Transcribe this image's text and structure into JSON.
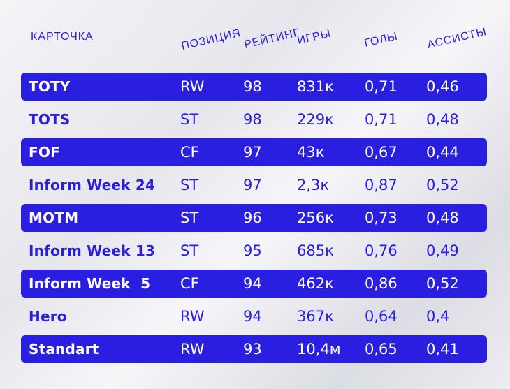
{
  "header": {
    "card": "КАРТОЧКА",
    "position": "ПОЗИЦИЯ",
    "rating": "РЕЙТИНГ",
    "games": "ИГРЫ",
    "goals": "ГОЛЫ",
    "assists": "АССИСТЫ"
  },
  "colors": {
    "accent": "#2a1ee0",
    "row_text_light": "#ffffff"
  },
  "rows": [
    {
      "name": "TOTY",
      "position": "RW",
      "rating": "98",
      "games": "831к",
      "goals": "0,71",
      "assists": "0,46"
    },
    {
      "name": "TOTS",
      "position": "ST",
      "rating": "98",
      "games": "229к",
      "goals": "0,71",
      "assists": "0,48"
    },
    {
      "name": "FOF",
      "position": "CF",
      "rating": "97",
      "games": "43к",
      "goals": "0,67",
      "assists": "0,44"
    },
    {
      "name": "Inform Week 24",
      "position": "ST",
      "rating": "97",
      "games": "2,3к",
      "goals": "0,87",
      "assists": "0,52"
    },
    {
      "name": "MOTM",
      "position": "ST",
      "rating": "96",
      "games": "256к",
      "goals": "0,73",
      "assists": "0,48"
    },
    {
      "name": "Inform Week 13",
      "position": "ST",
      "rating": "95",
      "games": "685к",
      "goals": "0,76",
      "assists": "0,49"
    },
    {
      "name": "Inform Week  5",
      "position": "CF",
      "rating": "94",
      "games": "462к",
      "goals": "0,86",
      "assists": "0,52"
    },
    {
      "name": "Hero",
      "position": "RW",
      "rating": "94",
      "games": "367к",
      "goals": "0,64",
      "assists": "0,4"
    },
    {
      "name": "Standart",
      "position": "RW",
      "rating": "93",
      "games": "10,4м",
      "goals": "0,65",
      "assists": "0,41"
    }
  ]
}
